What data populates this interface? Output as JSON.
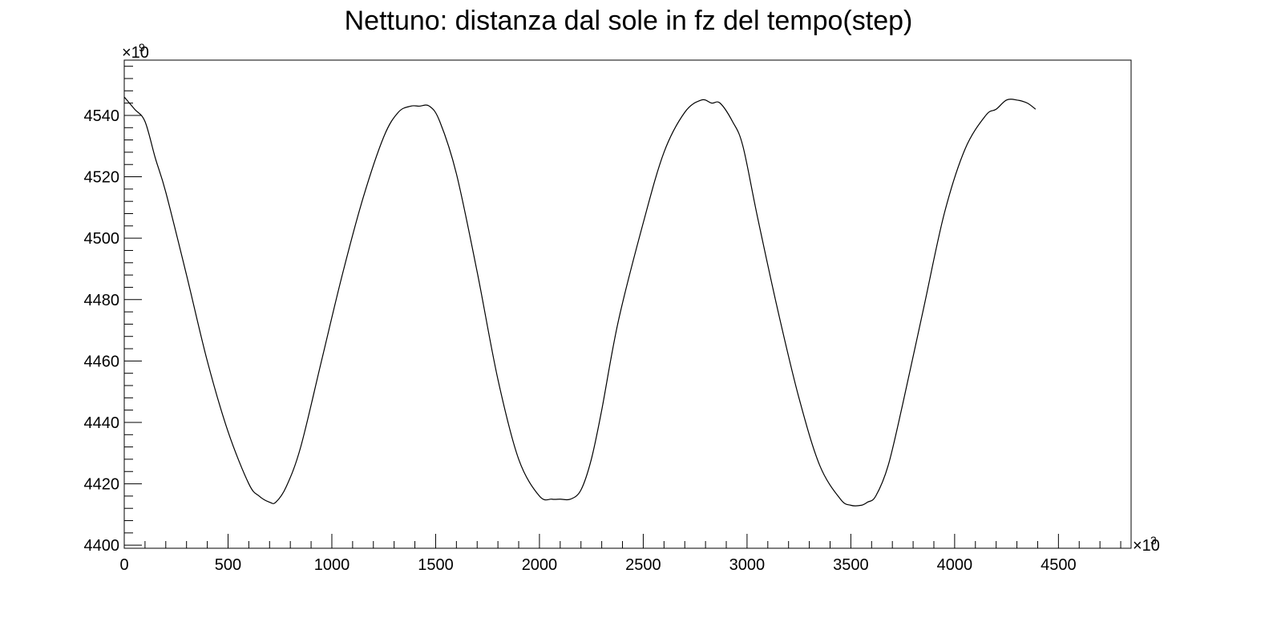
{
  "chart_data": {
    "type": "line",
    "title": "Nettuno: distanza dal sole in fz del tempo(step)",
    "xlabel": "",
    "ylabel": "",
    "x_exponent_label": "×10",
    "x_exponent_power": "3",
    "y_exponent_label": "×10",
    "y_exponent_power": "9",
    "xlim": [
      0,
      4850
    ],
    "ylim": [
      4399,
      4558
    ],
    "x_ticks": [
      0,
      500,
      1000,
      1500,
      2000,
      2500,
      3000,
      3500,
      4000,
      4500
    ],
    "x_tick_labels": [
      "0",
      "500",
      "1000",
      "1500",
      "2000",
      "2500",
      "3000",
      "3500",
      "4000",
      "4500"
    ],
    "y_ticks": [
      4400,
      4420,
      4440,
      4460,
      4480,
      4500,
      4520,
      4540
    ],
    "y_tick_labels": [
      "4400",
      "4420",
      "4440",
      "4460",
      "4480",
      "4500",
      "4520",
      "4540"
    ],
    "grid": false,
    "line_color": "#000000",
    "series": [
      {
        "x": [
          0,
          50,
          100,
          150,
          200,
          300,
          400,
          500,
          600,
          650,
          700,
          730,
          780,
          850,
          950,
          1050,
          1150,
          1250,
          1320,
          1380,
          1420,
          1470,
          1520,
          1600,
          1700,
          1800,
          1900,
          2000,
          2060,
          2100,
          2150,
          2200,
          2250,
          2300,
          2380,
          2500,
          2600,
          2700,
          2780,
          2830,
          2870,
          2930,
          2980,
          3050,
          3150,
          3250,
          3350,
          3450,
          3500,
          3550,
          3580,
          3620,
          3680,
          3750,
          3850,
          3950,
          4050,
          4150,
          4200,
          4250,
          4300,
          4350,
          4390
        ],
        "y": [
          4546,
          4542,
          4538,
          4526,
          4515,
          4488,
          4460,
          4437,
          4420,
          4416,
          4414,
          4414,
          4419,
          4432,
          4460,
          4488,
          4513,
          4533,
          4541,
          4543,
          4543,
          4543,
          4538,
          4521,
          4489,
          4454,
          4428,
          4416,
          4415,
          4415,
          4415,
          4418,
          4428,
          4444,
          4473,
          4505,
          4528,
          4541,
          4545,
          4544,
          4544,
          4538,
          4530,
          4507,
          4476,
          4448,
          4426,
          4415,
          4413,
          4413,
          4414,
          4416,
          4426,
          4446,
          4477,
          4508,
          4529,
          4540,
          4542,
          4545,
          4545,
          4544,
          4542
        ]
      }
    ]
  }
}
